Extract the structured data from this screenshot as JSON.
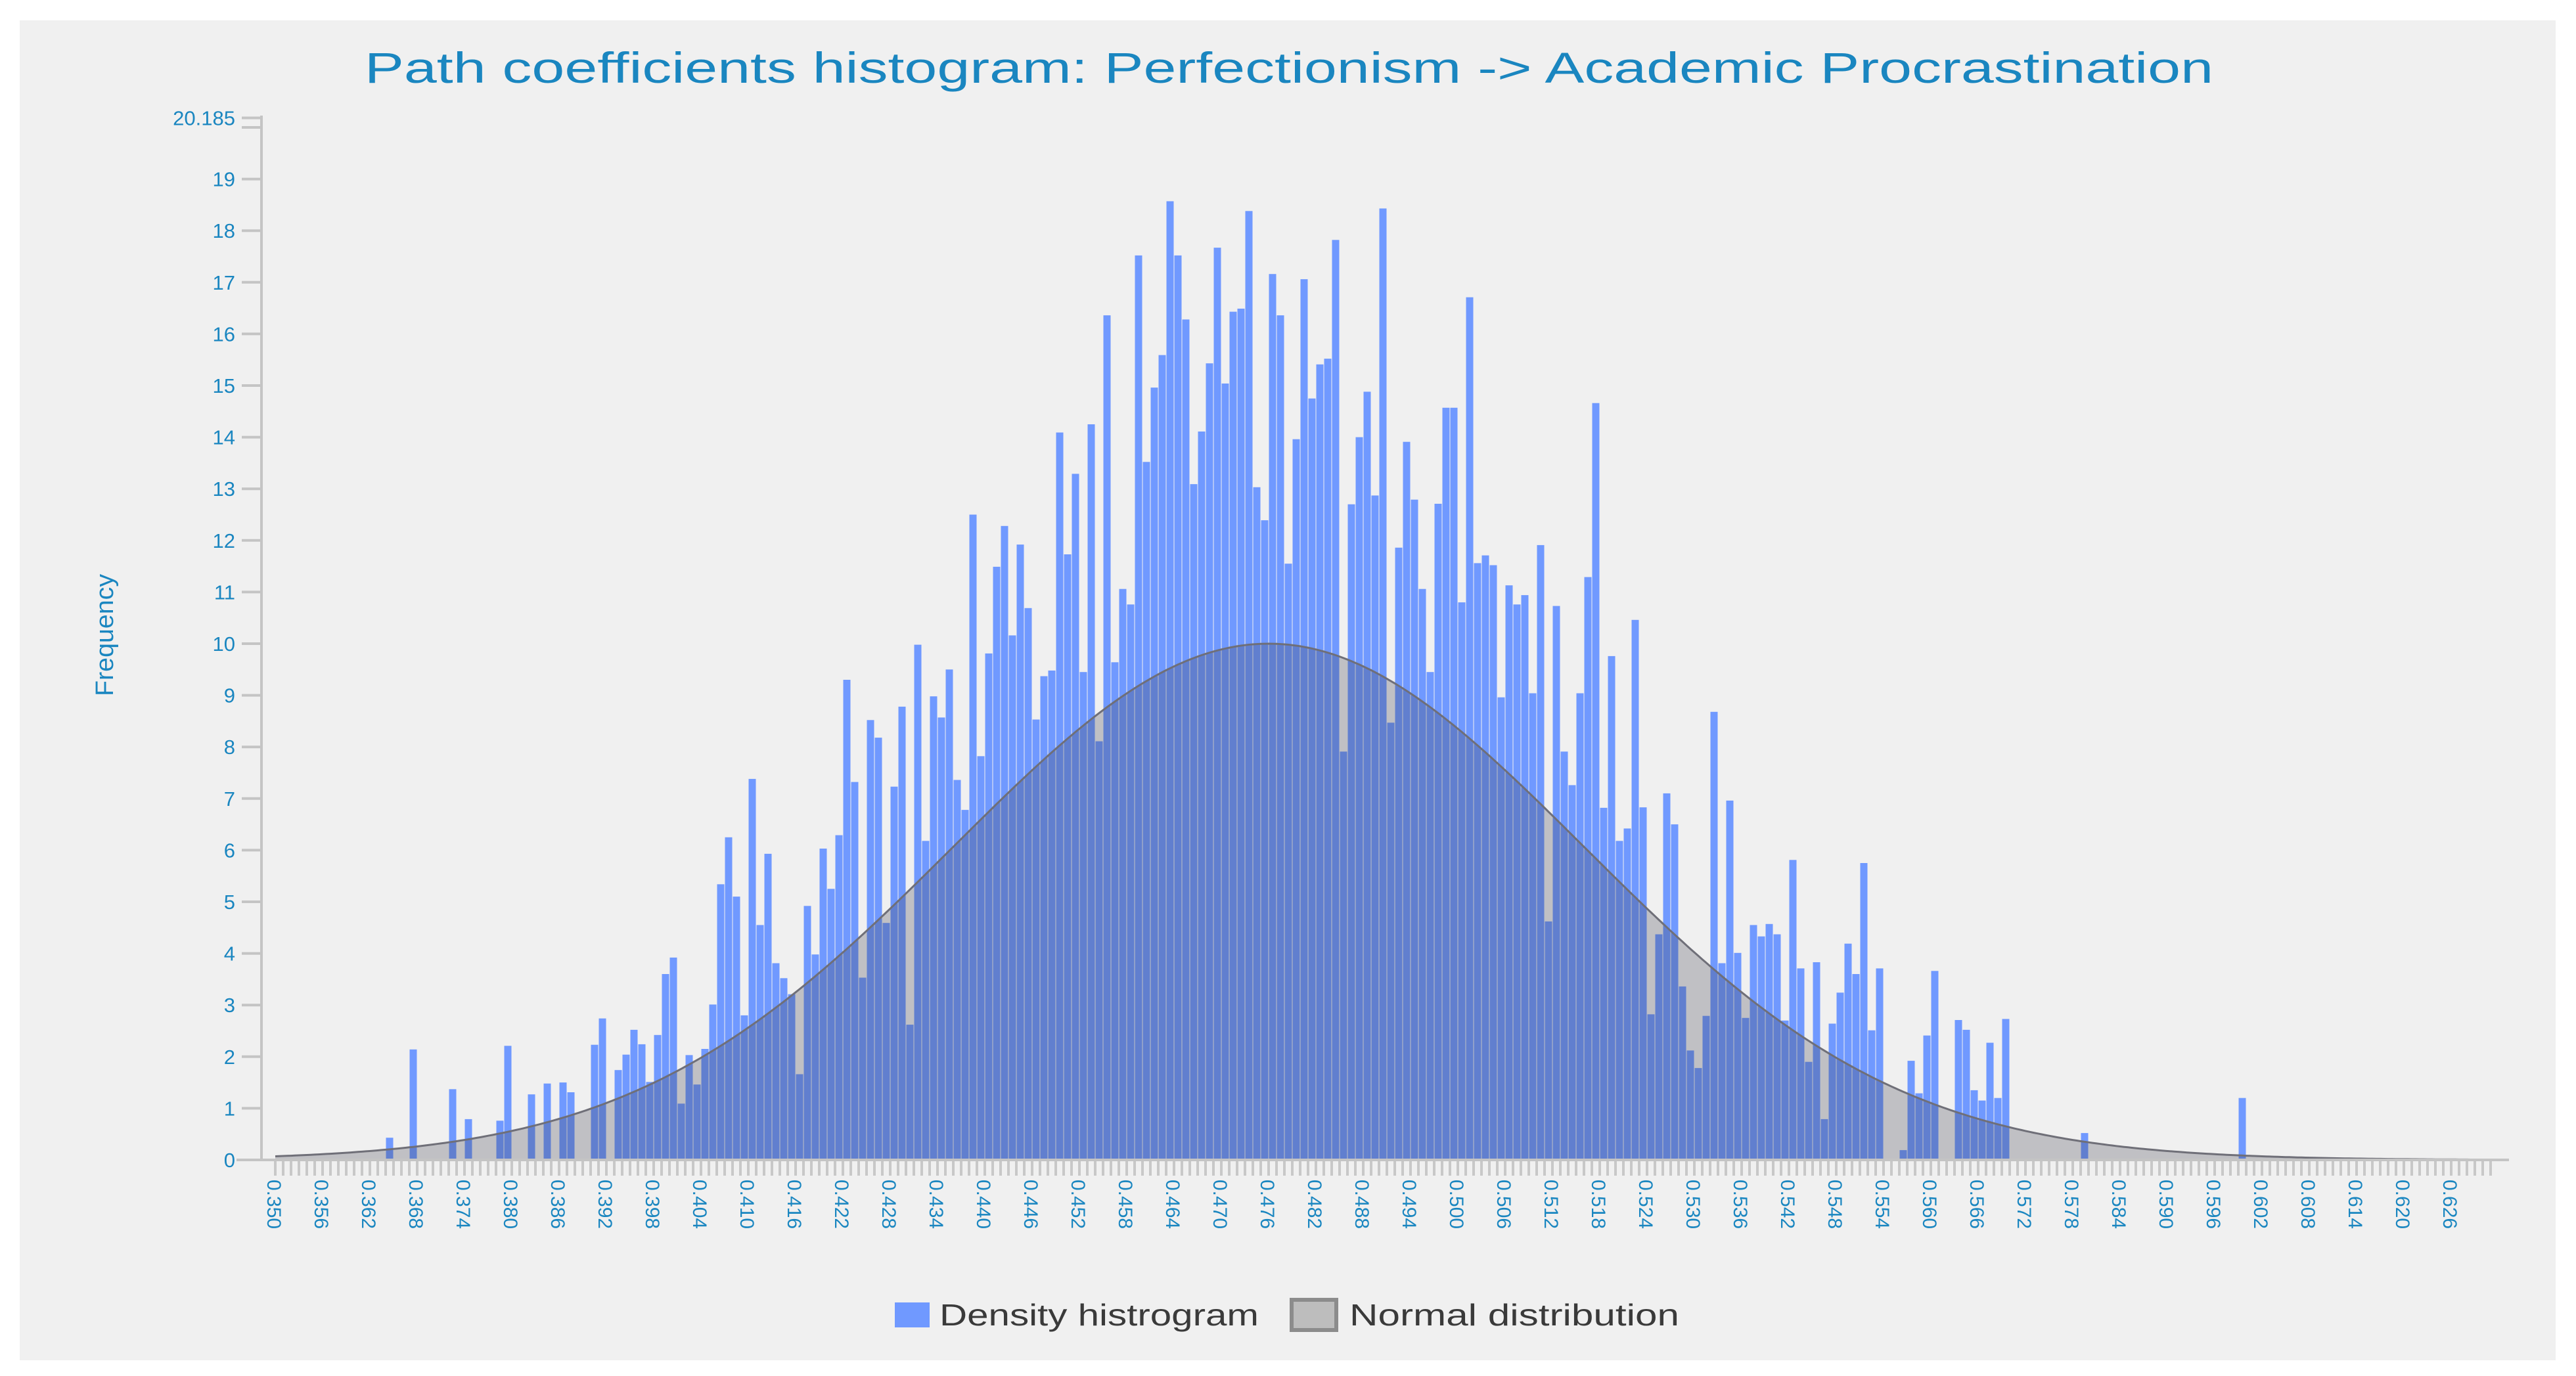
{
  "window": {
    "background": "#ffffff",
    "panel_background": "#f0f0f0"
  },
  "colors": {
    "title": "#1a86c0",
    "axis_text": "#1a86c0",
    "axis_line": "#c4c4c4",
    "density_bar": "#7099ff",
    "normal_fill": "rgba(55,55,70,0.26)",
    "normal_stroke": "#6f6f78",
    "legend_text": "#3a3a3a"
  },
  "chart_data": {
    "type": "bar",
    "title": "Path coefficients histogram: Perfectionism -> Academic Procrastination",
    "xlabel": "",
    "ylabel": "Frequency",
    "ylim": [
      0,
      20.185
    ],
    "xlim": [
      0.35,
      0.631
    ],
    "y_ticks": [
      "0",
      "1",
      "2",
      "3",
      "4",
      "5",
      "6",
      "7",
      "8",
      "9",
      "10",
      "11",
      "12",
      "13",
      "14",
      "15",
      "16",
      "17",
      "18",
      "19",
      "20.185"
    ],
    "y_tick_values": [
      0,
      1,
      2,
      3,
      4,
      5,
      6,
      7,
      8,
      9,
      10,
      11,
      12,
      13,
      14,
      15,
      16,
      17,
      18,
      19,
      20.185
    ],
    "y_minor_ticks": [
      20
    ],
    "x_ticks": [
      "0.350",
      "0.356",
      "0.362",
      "0.368",
      "0.374",
      "0.380",
      "0.386",
      "0.392",
      "0.398",
      "0.404",
      "0.410",
      "0.416",
      "0.422",
      "0.428",
      "0.434",
      "0.440",
      "0.446",
      "0.452",
      "0.458",
      "0.464",
      "0.470",
      "0.476",
      "0.482",
      "0.488",
      "0.494",
      "0.500",
      "0.506",
      "0.512",
      "0.518",
      "0.524",
      "0.530",
      "0.536",
      "0.542",
      "0.548",
      "0.554",
      "0.560",
      "0.566",
      "0.572",
      "0.578",
      "0.584",
      "0.590",
      "0.596",
      "0.602",
      "0.608",
      "0.614",
      "0.620",
      "0.626"
    ],
    "x_tick_step": 0.006,
    "x_minor_tick_step": 0.001,
    "grid": false,
    "legend_position": "bottom-center",
    "legend": [
      {
        "label": "Density histrogram",
        "color": "#7099ff"
      },
      {
        "label": "Normal distribution",
        "color": "#bdbdbd"
      }
    ],
    "series": [
      {
        "name": "Density histrogram",
        "type": "bar",
        "bin_start": 0.35,
        "bin_width": 0.001,
        "values": [
          0,
          0,
          0,
          0,
          0,
          0,
          0,
          0,
          0,
          0,
          0,
          0,
          0,
          0,
          0,
          0.43,
          0,
          0,
          2.14,
          0,
          0,
          0,
          0,
          1.37,
          0,
          0.79,
          0,
          0,
          0,
          0.76,
          2.21,
          0,
          0,
          1.27,
          0,
          1.48,
          0,
          1.5,
          1.31,
          0,
          0,
          2.23,
          2.74,
          0,
          1.74,
          2.04,
          2.52,
          2.24,
          1.51,
          2.42,
          3.6,
          3.92,
          1.09,
          2.03,
          1.46,
          2.15,
          3.01,
          5.34,
          6.25,
          5.1,
          2.8,
          7.38,
          4.55,
          5.93,
          3.81,
          3.52,
          3.21,
          1.66,
          4.92,
          3.98,
          6.03,
          5.25,
          6.29,
          9.3,
          7.32,
          3.53,
          8.52,
          8.18,
          4.59,
          7.23,
          8.78,
          2.62,
          9.98,
          6.18,
          8.98,
          8.57,
          9.5,
          7.36,
          6.78,
          12.5,
          7.82,
          9.81,
          11.49,
          12.28,
          10.16,
          11.92,
          10.69,
          8.53,
          9.37,
          9.48,
          14.09,
          11.73,
          13.29,
          9.45,
          14.25,
          8.11,
          16.36,
          9.64,
          11.06,
          10.76,
          17.52,
          13.52,
          14.96,
          15.59,
          18.57,
          17.52,
          16.28,
          13.09,
          14.11,
          15.43,
          17.67,
          15.04,
          16.43,
          16.49,
          18.38,
          13.03,
          12.39,
          17.16,
          16.36,
          11.55,
          13.96,
          17.06,
          14.75,
          15.41,
          15.52,
          17.82,
          7.91,
          12.7,
          14.0,
          14.88,
          12.87,
          18.43,
          8.47,
          11.86,
          13.91,
          12.79,
          11.06,
          9.45,
          12.71,
          14.57,
          14.57,
          10.8,
          16.71,
          11.56,
          11.71,
          11.52,
          8.96,
          11.13,
          10.76,
          10.94,
          9.04,
          11.91,
          4.62,
          10.73,
          7.91,
          7.26,
          9.04,
          11.29,
          14.66,
          6.82,
          9.76,
          6.18,
          6.42,
          10.46,
          6.83,
          2.82,
          4.37,
          7.1,
          6.5,
          3.36,
          2.12,
          1.78,
          2.79,
          8.68,
          3.81,
          6.96,
          4.01,
          2.75,
          4.55,
          4.33,
          4.57,
          4.37,
          2.7,
          5.81,
          3.71,
          1.9,
          3.83,
          0.79,
          2.64,
          3.24,
          4.19,
          3.6,
          5.75,
          2.51,
          3.71,
          0,
          0,
          0.19,
          1.92,
          1.29,
          2.41,
          3.66,
          0,
          0,
          2.71,
          2.52,
          1.35,
          1.15,
          2.27,
          1.2,
          2.73,
          0,
          0,
          0,
          0,
          0,
          0,
          0,
          0,
          0,
          0.52,
          0,
          0,
          0,
          0,
          0,
          0,
          0,
          0,
          0,
          0,
          0,
          0,
          0,
          0,
          0,
          0,
          0,
          0,
          0,
          1.2
        ]
      },
      {
        "name": "Normal distribution",
        "type": "area",
        "mean": 0.476,
        "sd": 0.04,
        "peak": 10.0,
        "x_start": 0.35,
        "x_end": 0.631
      }
    ]
  }
}
